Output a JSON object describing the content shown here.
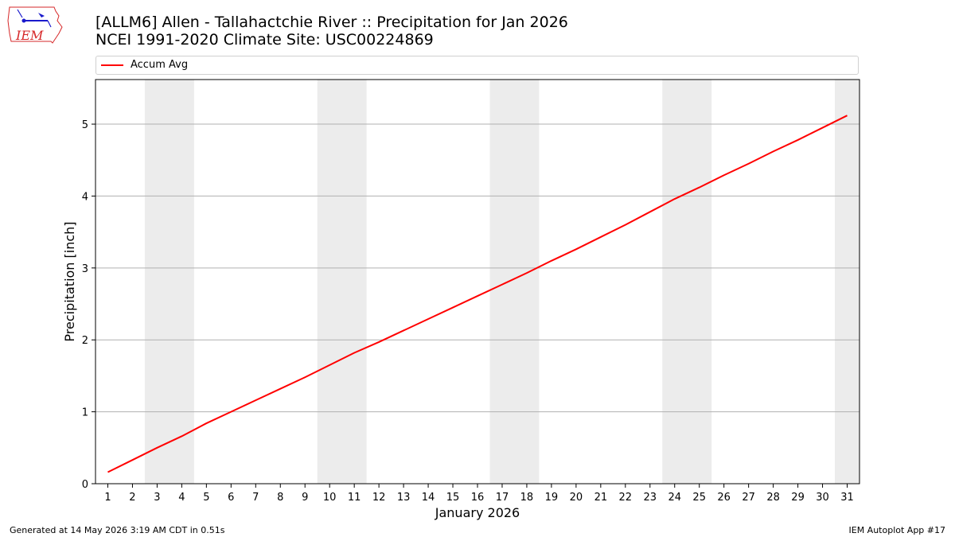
{
  "header": {
    "title_line1": "[ALLM6] Allen - Tallahactchie River :: Precipitation for Jan 2026",
    "title_line2": "NCEI 1991-2020 Climate Site: USC00224869",
    "logo_text": "IEM"
  },
  "legend": {
    "label": "Accum Avg"
  },
  "footer": {
    "generated": "Generated at 14 May 2026 3:19 AM CDT in 0.51s",
    "app": "IEM Autoplot App #17"
  },
  "colors": {
    "line": "#ff0000",
    "weekend_band": "#ececec",
    "grid": "#b0b0b0",
    "logo": "#d62728"
  },
  "chart_data": {
    "type": "line",
    "title": "[ALLM6] Allen - Tallahactchie River :: Precipitation for Jan 2026",
    "subtitle": "NCEI 1991-2020 Climate Site: USC00224869",
    "xlabel": "January 2026",
    "ylabel": "Precipitation [inch]",
    "x": [
      1,
      2,
      3,
      4,
      5,
      6,
      7,
      8,
      9,
      10,
      11,
      12,
      13,
      14,
      15,
      16,
      17,
      18,
      19,
      20,
      21,
      22,
      23,
      24,
      25,
      26,
      27,
      28,
      29,
      30,
      31
    ],
    "xlim": [
      0.5,
      31.5
    ],
    "ylim": [
      0,
      5.62
    ],
    "yticks": [
      0,
      1,
      2,
      3,
      4,
      5
    ],
    "grid": "horizontal",
    "legend_position": "top",
    "shaded_weekends": [
      [
        3,
        4
      ],
      [
        10,
        11
      ],
      [
        17,
        18
      ],
      [
        24,
        25
      ],
      [
        31,
        31
      ]
    ],
    "series": [
      {
        "name": "Accum Avg",
        "values": [
          0.16,
          0.33,
          0.5,
          0.66,
          0.84,
          1.0,
          1.16,
          1.32,
          1.48,
          1.65,
          1.82,
          1.97,
          2.13,
          2.29,
          2.45,
          2.61,
          2.77,
          2.93,
          3.1,
          3.26,
          3.43,
          3.6,
          3.78,
          3.96,
          4.12,
          4.29,
          4.45,
          4.62,
          4.78,
          4.95,
          5.12
        ]
      }
    ]
  }
}
